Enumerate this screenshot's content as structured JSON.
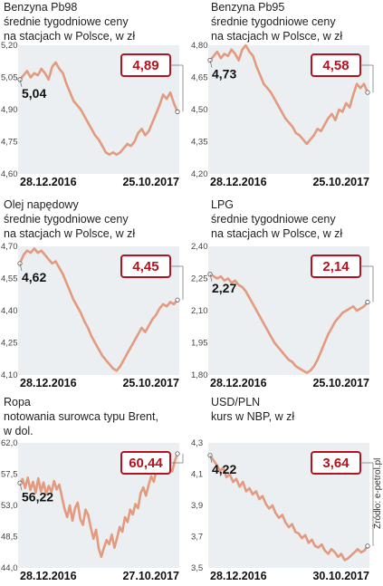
{
  "source": "Źródło: e-petrol.pl",
  "colors": {
    "line": "#e39a7e",
    "plot_bg": "#eceff1",
    "badge": "#b3131f",
    "connector": "#6b6b6b"
  },
  "chart_data": [
    {
      "type": "line",
      "title_lines": [
        "Benzyna Pb98",
        "średnie tygodniowe ceny",
        "na stacjach w Polsce, w zł"
      ],
      "start_label": "28.12.2016",
      "end_label": "25.10.2017",
      "yticks": [
        "5,20",
        "5,05",
        "4,90",
        "4,75",
        "4,60"
      ],
      "ylim": [
        4.6,
        5.2
      ],
      "start_value": "5,04",
      "end_value": "4,89",
      "values": [
        5.04,
        5.06,
        5.08,
        5.05,
        5.07,
        5.06,
        5.09,
        5.07,
        5.04,
        5.1,
        5.12,
        5.09,
        5.07,
        5.02,
        4.98,
        4.94,
        4.92,
        4.9,
        4.87,
        4.84,
        4.81,
        4.78,
        4.76,
        4.73,
        4.7,
        4.69,
        4.7,
        4.69,
        4.7,
        4.72,
        4.74,
        4.73,
        4.75,
        4.79,
        4.81,
        4.78,
        4.8,
        4.84,
        4.88,
        4.92,
        4.97,
        4.95,
        4.98,
        4.93,
        4.89
      ]
    },
    {
      "type": "line",
      "title_lines": [
        "Benzyna Pb95",
        "średnie tygodniowe ceny",
        "na stacjach w Polsce, w zł"
      ],
      "start_label": "28.12.2016",
      "end_label": "25.10.2017",
      "yticks": [
        "4,80",
        "4,65",
        "4,50",
        "4,35",
        "4,20"
      ],
      "ylim": [
        4.2,
        4.8
      ],
      "start_value": "4,73",
      "end_value": "4,58",
      "values": [
        4.73,
        4.75,
        4.77,
        4.74,
        4.76,
        4.75,
        4.78,
        4.76,
        4.73,
        4.78,
        4.8,
        4.77,
        4.75,
        4.7,
        4.66,
        4.62,
        4.6,
        4.58,
        4.55,
        4.52,
        4.49,
        4.46,
        4.44,
        4.42,
        4.39,
        4.38,
        4.36,
        4.34,
        4.36,
        4.38,
        4.41,
        4.4,
        4.43,
        4.46,
        4.48,
        4.45,
        4.5,
        4.49,
        4.53,
        4.51,
        4.57,
        4.62,
        4.6,
        4.62,
        4.58
      ]
    },
    {
      "type": "line",
      "title_lines": [
        "Olej napędowy",
        "średnie tygodniowe ceny",
        "na stacjach w Polsce, w zł"
      ],
      "start_label": "28.12.2016",
      "end_label": "25.10.2017",
      "yticks": [
        "4,70",
        "4,55",
        "4,40",
        "4,25",
        "4,10"
      ],
      "ylim": [
        4.1,
        4.7
      ],
      "start_value": "4,62",
      "end_value": "4,45",
      "values": [
        4.62,
        4.66,
        4.68,
        4.67,
        4.69,
        4.67,
        4.68,
        4.66,
        4.64,
        4.62,
        4.63,
        4.6,
        4.57,
        4.53,
        4.49,
        4.45,
        4.42,
        4.39,
        4.35,
        4.32,
        4.28,
        4.25,
        4.22,
        4.19,
        4.17,
        4.15,
        4.13,
        4.12,
        4.14,
        4.17,
        4.2,
        4.23,
        4.26,
        4.29,
        4.32,
        4.3,
        4.33,
        4.36,
        4.38,
        4.41,
        4.43,
        4.42,
        4.44,
        4.43,
        4.45
      ]
    },
    {
      "type": "line",
      "title_lines": [
        "LPG",
        "średnie tygodniowe ceny",
        "na stacjach w Polsce, w zł"
      ],
      "start_label": "28.12.2016",
      "end_label": "25.10.2017",
      "yticks": [
        "2,40",
        "2,25",
        "2,10",
        "1,95",
        "1,80"
      ],
      "ylim": [
        1.8,
        2.4
      ],
      "start_value": "2,27",
      "end_value": "2,14",
      "values": [
        2.27,
        2.26,
        2.25,
        2.26,
        2.24,
        2.25,
        2.23,
        2.24,
        2.22,
        2.21,
        2.19,
        2.16,
        2.13,
        2.1,
        2.07,
        2.04,
        2.01,
        1.98,
        1.95,
        1.93,
        1.91,
        1.89,
        1.87,
        1.86,
        1.84,
        1.83,
        1.82,
        1.81,
        1.82,
        1.84,
        1.87,
        1.91,
        1.95,
        1.99,
        2.02,
        2.05,
        2.07,
        2.09,
        2.1,
        2.11,
        2.12,
        2.1,
        2.11,
        2.12,
        2.14
      ]
    },
    {
      "type": "line",
      "title_lines": [
        "Ropa",
        "notowania surowca typu Brent,",
        "w dol."
      ],
      "start_label": "28.12.2016",
      "end_label": "27.10.2017",
      "yticks": [
        "62,0",
        "57,5",
        "53,0",
        "48,5",
        "44,0"
      ],
      "ylim": [
        44.0,
        62.0
      ],
      "start_value": "56,22",
      "end_value": "60,44",
      "values": [
        56.22,
        56.8,
        55.5,
        57.0,
        55.2,
        56.4,
        54.8,
        56.9,
        55.0,
        56.3,
        54.6,
        55.8,
        54.9,
        56.5,
        55.3,
        56.0,
        54.2,
        52.5,
        51.3,
        53.0,
        50.8,
        52.6,
        53.4,
        51.0,
        50.2,
        52.4,
        51.6,
        49.8,
        48.2,
        49.5,
        46.8,
        45.6,
        46.9,
        48.0,
        47.4,
        48.8,
        46.9,
        48.3,
        49.9,
        49.2,
        51.3,
        50.6,
        52.4,
        51.7,
        53.2,
        52.6,
        54.8,
        55.6,
        54.4,
        55.9,
        57.2,
        56.4,
        58.1,
        57.6,
        58.6,
        57.8,
        59.0,
        58.3,
        57.9,
        59.4,
        60.44
      ]
    },
    {
      "type": "line",
      "title_lines": [
        "USD/PLN",
        "kurs w NBP, w zł"
      ],
      "start_label": "28.12.2016",
      "end_label": "30.10.2017",
      "yticks": [
        "4,3",
        "4,1",
        "3,9",
        "3,7",
        "3,5"
      ],
      "ylim": [
        3.5,
        4.3
      ],
      "start_value": "4,22",
      "end_value": "3,64",
      "values": [
        4.22,
        4.19,
        4.16,
        4.12,
        4.14,
        4.08,
        4.1,
        4.05,
        4.07,
        4.02,
        4.05,
        3.99,
        4.01,
        3.97,
        3.99,
        3.94,
        3.96,
        3.91,
        3.88,
        3.9,
        3.85,
        3.82,
        3.84,
        3.79,
        3.76,
        3.78,
        3.73,
        3.72,
        3.69,
        3.71,
        3.66,
        3.68,
        3.64,
        3.63,
        3.65,
        3.61,
        3.59,
        3.62,
        3.6,
        3.57,
        3.59,
        3.55,
        3.56,
        3.58,
        3.6,
        3.62,
        3.6,
        3.61,
        3.64
      ]
    }
  ]
}
